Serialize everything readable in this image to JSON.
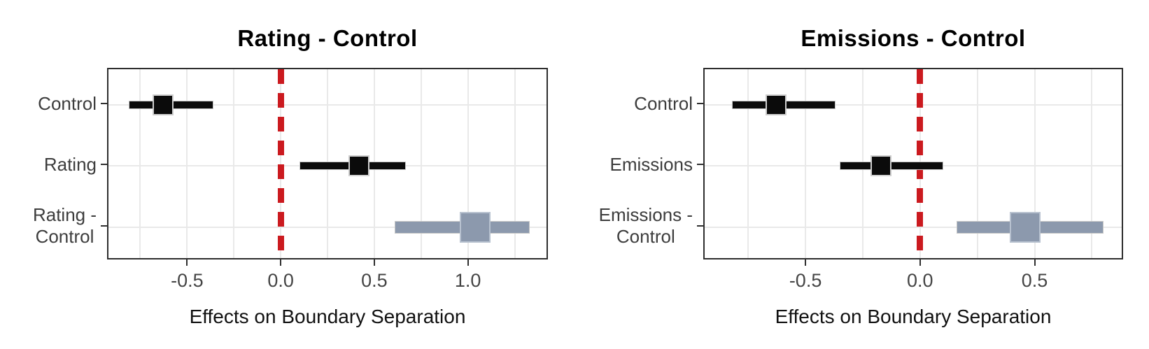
{
  "figure": {
    "background": "#ffffff"
  },
  "colors": {
    "point_black": "#0b0b0b",
    "point_slate": "#8c99ad",
    "slate_border": "#b7c1cf",
    "black_border": "#cfcfcf",
    "refline_red": "#cb1a1f",
    "grid": "#e9e9e9",
    "panel_border": "#2e2e2e",
    "tick_label": "#454545",
    "category_label": "#3d3d3d",
    "title": "#000000",
    "axis_title": "#111111"
  },
  "chart_data": [
    {
      "type": "pointinterval",
      "title": "Rating - Control",
      "xlabel": "Effects on Boundary Separation",
      "categories": [
        [
          "Control"
        ],
        [
          "Rating"
        ],
        [
          "Rating -",
          "Control"
        ]
      ],
      "series": [
        {
          "category": "Control",
          "median": -0.63,
          "ci_low": -0.81,
          "ci_high": -0.36,
          "color": "black",
          "emphasis": false
        },
        {
          "category": "Rating",
          "median": 0.42,
          "ci_low": 0.1,
          "ci_high": 0.67,
          "color": "black",
          "emphasis": false
        },
        {
          "category": "Rating - Control",
          "median": 1.04,
          "ci_low": 0.61,
          "ci_high": 1.33,
          "color": "slate",
          "emphasis": true
        }
      ],
      "xticks": [
        -0.5,
        0.0,
        0.5,
        1.0
      ],
      "xtick_labels": [
        "-0.5",
        "0.0",
        "0.5",
        "1.0"
      ],
      "xlim": [
        -0.92,
        1.42
      ],
      "minor_grid_step": 0.25,
      "refline_x": 0.0,
      "grid": true,
      "legend": "none"
    },
    {
      "type": "pointinterval",
      "title": "Emissions - Control",
      "xlabel": "Effects on Boundary Separation",
      "categories": [
        [
          "Control"
        ],
        [
          "Emissions"
        ],
        [
          "Emissions -",
          "Control"
        ]
      ],
      "series": [
        {
          "category": "Control",
          "median": -0.63,
          "ci_low": -0.82,
          "ci_high": -0.37,
          "color": "black",
          "emphasis": false
        },
        {
          "category": "Emissions",
          "median": -0.17,
          "ci_low": -0.35,
          "ci_high": 0.1,
          "color": "black",
          "emphasis": false
        },
        {
          "category": "Emissions - Control",
          "median": 0.46,
          "ci_low": 0.16,
          "ci_high": 0.8,
          "color": "slate",
          "emphasis": true
        }
      ],
      "xticks": [
        -0.5,
        0.0,
        0.5
      ],
      "xtick_labels": [
        "-0.5",
        "0.0",
        "0.5"
      ],
      "xlim": [
        -0.94,
        0.88
      ],
      "minor_grid_step": 0.25,
      "refline_x": 0.0,
      "grid": true,
      "legend": "none"
    }
  ]
}
